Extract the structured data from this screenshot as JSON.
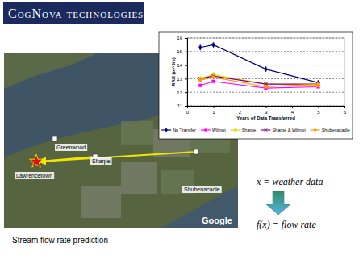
{
  "chart_data": {
    "type": "line",
    "x_label": "Years of Data Transferred",
    "y_label": "RAE (m^3/s)",
    "x": [
      0.5,
      1,
      3,
      5
    ],
    "xlim": [
      0,
      6
    ],
    "xticks": [
      0,
      1,
      2,
      3,
      4,
      5,
      6
    ],
    "ylim": [
      11,
      16
    ],
    "yticks": [
      11,
      12,
      13,
      14,
      15,
      16
    ],
    "grid": true,
    "legend": "bottom",
    "series": [
      {
        "name": "No Transfer",
        "color": "#000080",
        "marker": "diamond",
        "values": [
          15.3,
          15.5,
          13.7,
          12.7
        ]
      },
      {
        "name": "Wilmot",
        "color": "#ff00ff",
        "marker": "square",
        "values": [
          12.5,
          12.8,
          12.3,
          12.4
        ]
      },
      {
        "name": "Sharpe",
        "color": "#e8d800",
        "marker": "triangle",
        "values": [
          13.0,
          13.3,
          12.6,
          12.5
        ]
      },
      {
        "name": "Sharpe & Wilmot",
        "color": "#800080",
        "marker": "x",
        "values": [
          13.0,
          13.2,
          12.6,
          12.6
        ]
      },
      {
        "name": "Shubenacadie",
        "color": "#ff9900",
        "marker": "circle",
        "values": [
          12.9,
          13.1,
          12.4,
          12.6
        ]
      }
    ]
  },
  "slide": {
    "logo": "CogNova technologies",
    "map_labels": [
      "Greenwood",
      "Sharpe",
      "Lawrencetown",
      "Shubenacadie"
    ],
    "map_credit": "Google",
    "input": "x = weather data",
    "output": "f(x) = flow rate",
    "caption": "Stream flow rate prediction"
  }
}
